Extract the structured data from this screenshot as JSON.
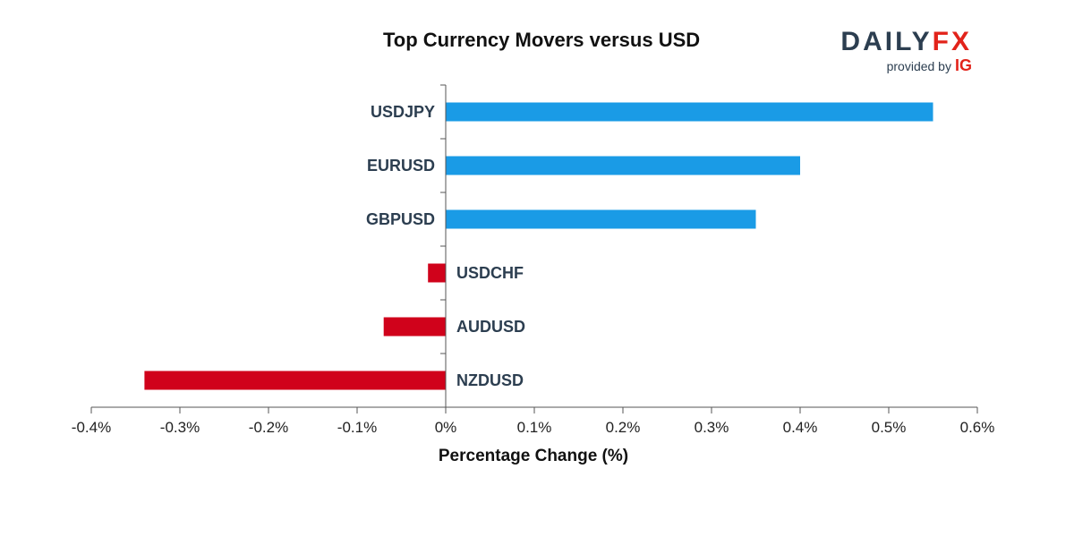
{
  "logo": {
    "brand_daily": "DAILY",
    "brand_fx": "FX",
    "provided_by": "provided by",
    "ig": "IG"
  },
  "colors": {
    "positive": "#1a9be6",
    "negative": "#d0021b",
    "axis": "#555555",
    "brand_red": "#e2231a",
    "brand_navy": "#2c3e50"
  },
  "chart_data": {
    "type": "bar",
    "orientation": "horizontal",
    "title": "Top Currency Movers versus USD",
    "xlabel": "Percentage Change (%)",
    "ylabel": "",
    "xlim": [
      -0.4,
      0.6
    ],
    "xticks": [
      -0.4,
      -0.3,
      -0.2,
      -0.1,
      0,
      0.1,
      0.2,
      0.3,
      0.4,
      0.5,
      0.6
    ],
    "xtick_labels": [
      "-0.4%",
      "-0.3%",
      "-0.2%",
      "-0.1%",
      "0%",
      "0.1%",
      "0.2%",
      "0.3%",
      "0.4%",
      "0.5%",
      "0.6%"
    ],
    "categories": [
      "USDJPY",
      "EURUSD",
      "GBPUSD",
      "USDCHF",
      "AUDUSD",
      "NZDUSD"
    ],
    "values": [
      0.55,
      0.4,
      0.35,
      -0.02,
      -0.07,
      -0.34
    ],
    "grid": false,
    "legend": "none"
  }
}
